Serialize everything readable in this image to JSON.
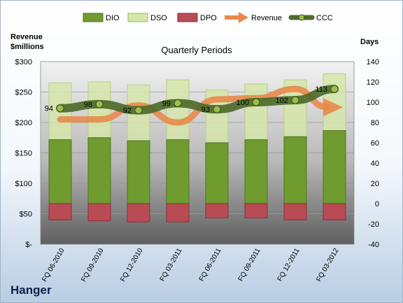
{
  "company": "Hanger",
  "chart_data": {
    "type": "bar",
    "title": "Quarterly Periods",
    "categories": [
      "FQ 06-2010",
      "FQ 09-2010",
      "FQ 12-2010",
      "FQ 03-2011",
      "FQ 06-2011",
      "FQ 09-2011",
      "FQ 12-2011",
      "FQ 03-2012"
    ],
    "series": [
      {
        "name": "DIO",
        "axis": "days",
        "kind": "bar",
        "values": [
          63,
          65,
          62,
          63,
          60,
          63,
          66,
          72
        ],
        "color": "#6f9b2f"
      },
      {
        "name": "DSO",
        "axis": "days",
        "kind": "bar-stacked",
        "values": [
          56,
          55,
          55,
          59,
          52,
          55,
          56,
          56
        ],
        "color": "#d6e6a8"
      },
      {
        "name": "DPO",
        "axis": "days",
        "kind": "bar",
        "values": [
          -16,
          -17,
          -18,
          -18,
          -14,
          -14,
          -16,
          -16
        ],
        "color": "#b94b55"
      },
      {
        "name": "Revenue",
        "axis": "revenue",
        "kind": "line",
        "values": [
          205,
          205,
          228,
          200,
          238,
          240,
          255,
          225
        ],
        "color": "#e8894a"
      },
      {
        "name": "CCC",
        "axis": "days",
        "kind": "line",
        "values": [
          94,
          98,
          92,
          99,
          93,
          100,
          102,
          113
        ],
        "color": "#4e6b2a"
      }
    ],
    "ccc_labels": [
      "94",
      "98",
      "92",
      "99",
      "93",
      "100",
      "102",
      "113"
    ],
    "left_axis": {
      "label_line1": "Revenue",
      "label_line2": "$millions",
      "range": [
        0,
        300
      ],
      "ticks": [
        {
          "v": 0,
          "t": "$-"
        },
        {
          "v": 50,
          "t": "$50"
        },
        {
          "v": 100,
          "t": "$100"
        },
        {
          "v": 150,
          "t": "$150"
        },
        {
          "v": 200,
          "t": "$200"
        },
        {
          "v": 250,
          "t": "$250"
        },
        {
          "v": 300,
          "t": "$300"
        }
      ]
    },
    "right_axis": {
      "label": "Days",
      "range": [
        -40,
        140
      ],
      "ticks": [
        {
          "v": -40,
          "t": "-40"
        },
        {
          "v": -20,
          "t": "-20"
        },
        {
          "v": 0,
          "t": "0"
        },
        {
          "v": 20,
          "t": "20"
        },
        {
          "v": 40,
          "t": "40"
        },
        {
          "v": 60,
          "t": "60"
        },
        {
          "v": 80,
          "t": "80"
        },
        {
          "v": 100,
          "t": "100"
        },
        {
          "v": 120,
          "t": "120"
        },
        {
          "v": 140,
          "t": "140"
        }
      ]
    },
    "legend": {
      "position": "top",
      "items": [
        "DIO",
        "DSO",
        "DPO",
        "Revenue",
        "CCC"
      ]
    }
  }
}
